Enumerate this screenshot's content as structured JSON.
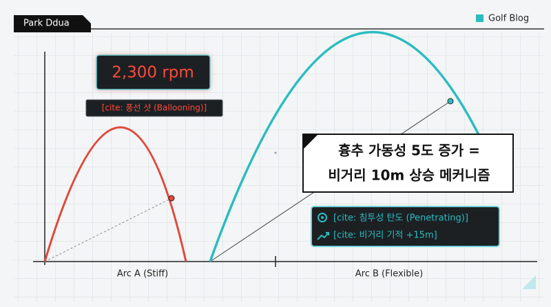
{
  "header": {
    "author": "Park Ddua",
    "brand": "Golf Blog"
  },
  "arc_a": {
    "metric": "2,300 rpm",
    "cite": "[cite: 풍선 샷 (Ballooning)]",
    "label": "Arc A (Stiff)"
  },
  "arc_b": {
    "label": "Arc B (Flexible)",
    "cites": [
      "[cite: 침투성 탄도 (Penetrating)]",
      "[cite: 비거리 기적 +15m]"
    ]
  },
  "headline": {
    "lines": [
      "흉추 가동성 5도 증가 =",
      "비거리 10m 상승 메커니즘"
    ]
  }
}
